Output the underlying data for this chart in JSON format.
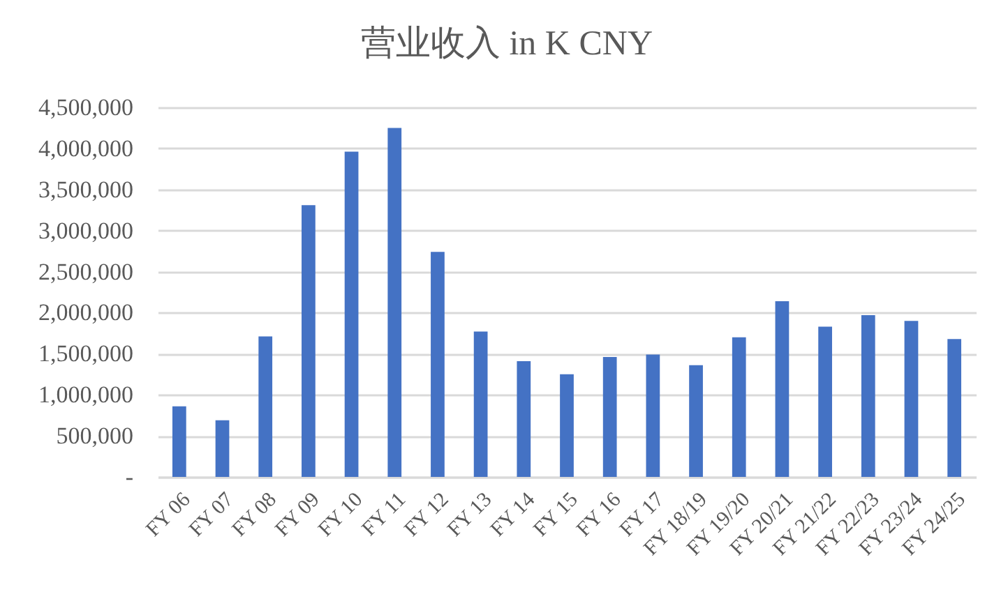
{
  "chart_data": {
    "type": "bar",
    "title": "营业收入 in K CNY",
    "categories": [
      "FY 06",
      "FY 07",
      "FY 08",
      "FY 09",
      "FY 10",
      "FY 11",
      "FY 12",
      "FY 13",
      "FY 14",
      "FY 15",
      "FY 16",
      "FY 17",
      "FY 18/19",
      "FY 19/20",
      "FY 20/21",
      "FY 21/22",
      "FY 22/23",
      "FY 23/24",
      "FY 24/25"
    ],
    "values": [
      860000,
      690000,
      1710000,
      3310000,
      3960000,
      4250000,
      2740000,
      1770000,
      1410000,
      1250000,
      1460000,
      1490000,
      1360000,
      1700000,
      2140000,
      1830000,
      1970000,
      1900000,
      1680000
    ],
    "color": "#4472c4",
    "ylim": [
      0,
      4500000
    ],
    "yticks": [
      {
        "value": 0,
        "label": "-"
      },
      {
        "value": 500000,
        "label": "500,000"
      },
      {
        "value": 1000000,
        "label": "1,000,000"
      },
      {
        "value": 1500000,
        "label": "1,500,000"
      },
      {
        "value": 2000000,
        "label": "2,000,000"
      },
      {
        "value": 2500000,
        "label": "2,500,000"
      },
      {
        "value": 3000000,
        "label": "3,000,000"
      },
      {
        "value": 3500000,
        "label": "3,500,000"
      },
      {
        "value": 4000000,
        "label": "4,000,000"
      },
      {
        "value": 4500000,
        "label": "4,500,000"
      }
    ],
    "grid": "y"
  }
}
